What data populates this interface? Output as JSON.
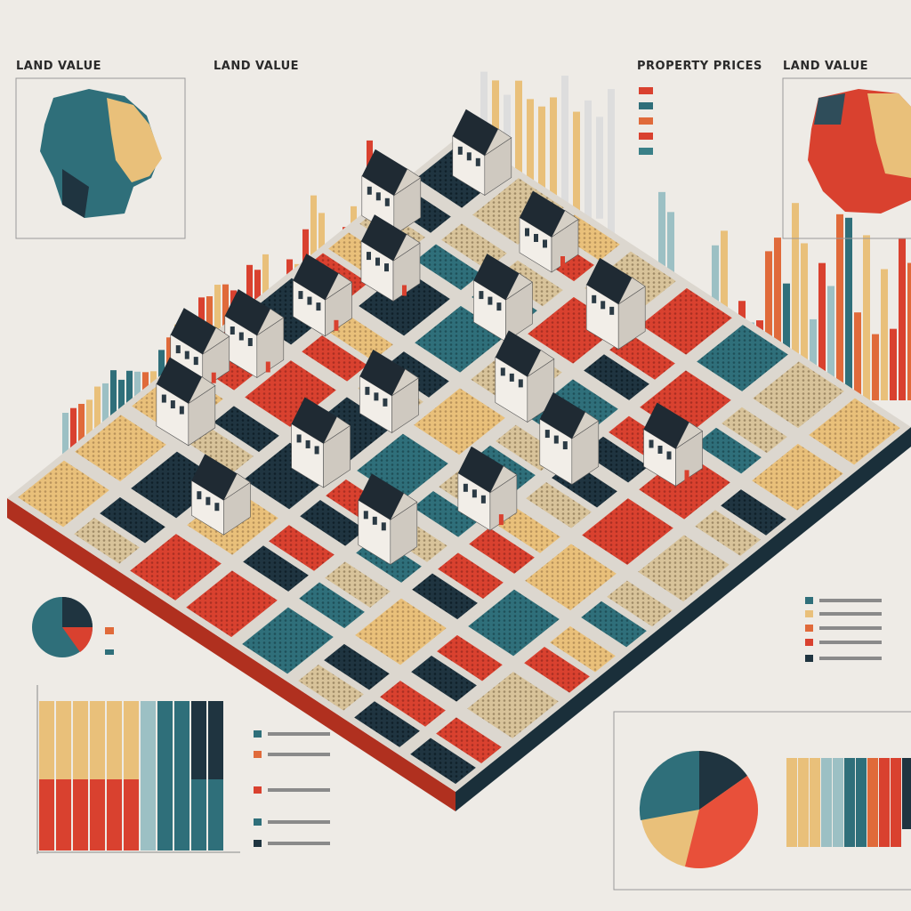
{
  "headings": {
    "land_value_left": "LAND VALUE",
    "land_value_center": "LAND VALUE",
    "property_prices": "PROPERTY PRICES",
    "land_value_right": "LAND VALUE"
  }
}
